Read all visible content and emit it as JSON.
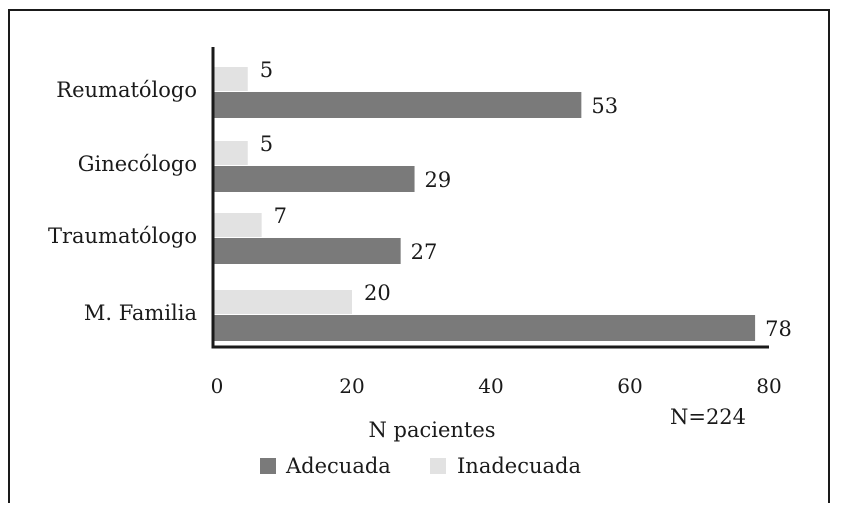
{
  "chart_data": {
    "type": "bar",
    "orientation": "horizontal",
    "categories": [
      "Reumatólogo",
      "Ginecólogo",
      "Traumatólogo",
      "M. Familia"
    ],
    "series": [
      {
        "name": "Inadecuada",
        "values": [
          5,
          5,
          7,
          20
        ],
        "color": "#e2e2e2"
      },
      {
        "name": "Adecuada",
        "values": [
          53,
          29,
          27,
          78
        ],
        "color": "#7a7a7a"
      }
    ],
    "x_ticks": [
      "0",
      "20",
      "40",
      "60",
      "80"
    ],
    "xlim": [
      0,
      80
    ],
    "xlabel": "N pacientes",
    "annotation": "N=224",
    "legend": {
      "position": "bottom",
      "entries": [
        {
          "label": "Adecuada",
          "color": "#7a7a7a"
        },
        {
          "label": "Inadecuada",
          "color": "#e2e2e2"
        }
      ]
    },
    "grid": false
  }
}
